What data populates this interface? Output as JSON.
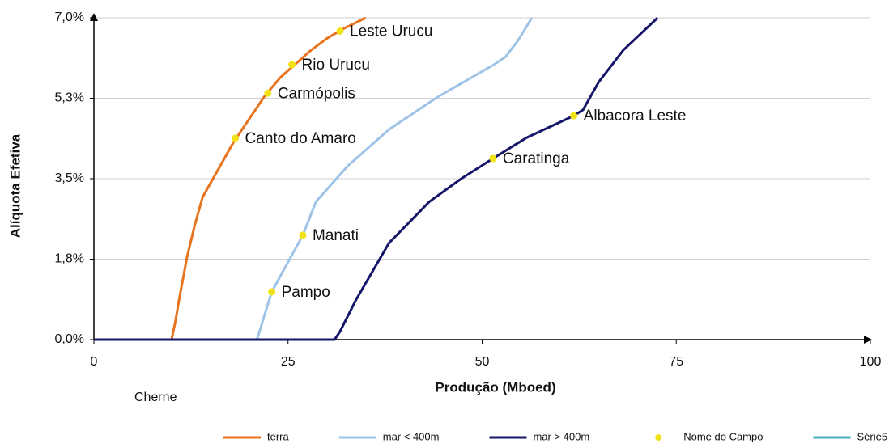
{
  "chart_data": {
    "type": "line",
    "xlabel": "Produção (Mboed)",
    "ylabel": "Alíquota Efetiva",
    "xlim": [
      0,
      100
    ],
    "ylim": [
      0,
      7.0
    ],
    "xticks": [
      0,
      25,
      50,
      75,
      100
    ],
    "yticks": [
      {
        "value": 0,
        "label": "0,0%"
      },
      {
        "value": 1.75,
        "label": "1,8%"
      },
      {
        "value": 3.5,
        "label": "3,5%"
      },
      {
        "value": 5.25,
        "label": "5,3%"
      },
      {
        "value": 7.0,
        "label": "7,0%"
      }
    ],
    "grid": true,
    "legend": "bottom",
    "annotations": [
      "Cherne"
    ],
    "series": [
      {
        "name": "terra",
        "type": "line",
        "color": "#e8731e",
        "x": [
          0,
          10,
          10.5,
          11,
          12,
          13,
          14,
          16,
          18,
          20,
          22,
          24,
          26,
          28,
          30,
          32,
          35
        ],
        "values": [
          0,
          0,
          0.4,
          0.9,
          1.8,
          2.5,
          3.1,
          3.7,
          4.3,
          4.8,
          5.3,
          5.7,
          6.0,
          6.3,
          6.55,
          6.75,
          7.0
        ]
      },
      {
        "name": "mar < 400m",
        "type": "line",
        "color": "#9dc3e6",
        "x": [
          0,
          21,
          22.9,
          26.9,
          28.6,
          32.7,
          38,
          44.2,
          51.5,
          53,
          54.6,
          56.4
        ],
        "values": [
          0,
          0,
          1.04,
          2.27,
          3.0,
          3.78,
          4.57,
          5.27,
          5.98,
          6.15,
          6.5,
          7.0
        ]
      },
      {
        "name": "mar > 400m",
        "type": "line",
        "color": "#16166a",
        "x": [
          0,
          31,
          31.7,
          33.8,
          38,
          43.2,
          47.3,
          51.4,
          55.7,
          61.8,
          63,
          65,
          68.2,
          72.6
        ],
        "values": [
          0,
          0,
          0.18,
          0.88,
          2.1,
          3.0,
          3.5,
          3.94,
          4.39,
          4.87,
          5.0,
          5.6,
          6.3,
          7.0
        ]
      },
      {
        "name": "Nome do Campo",
        "type": "scatter",
        "color": "#f2e318",
        "x": [
          22.9,
          26.9,
          18.2,
          22.4,
          25.5,
          31.7,
          51.4,
          61.8
        ],
        "values": [
          1.04,
          2.27,
          4.38,
          5.36,
          5.98,
          6.71,
          3.94,
          4.87
        ],
        "labels": [
          "Pampo",
          "Manati",
          "Canto do Amaro",
          "Carmópolis",
          "Rio Urucu",
          "Leste Urucu",
          "Caratinga",
          "Albacora Leste"
        ]
      },
      {
        "name": "Série5",
        "type": "line",
        "color": "#4bacc6",
        "x": [],
        "values": []
      }
    ]
  }
}
